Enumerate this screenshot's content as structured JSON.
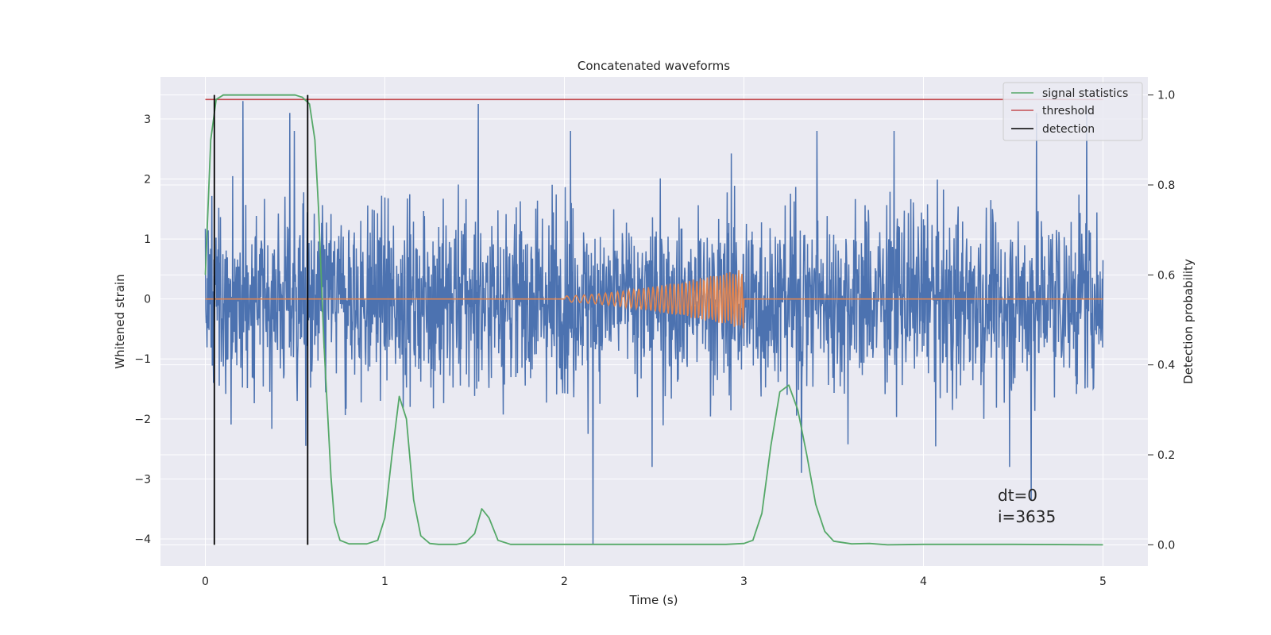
{
  "chart_data": {
    "type": "line",
    "title": "Concatenated waveforms",
    "xlabel": "Time (s)",
    "ylabel": "Whitened strain",
    "y2label": "Detection probability",
    "xlim": [
      -0.25,
      5.25
    ],
    "ylim": [
      -4.45,
      3.7
    ],
    "y2lim": [
      -0.047,
      1.04
    ],
    "xticks": [
      0,
      1,
      2,
      3,
      4,
      5
    ],
    "xtick_labels": [
      "0",
      "1",
      "2",
      "3",
      "4",
      "5"
    ],
    "yticks": [
      -4,
      -3,
      -2,
      -1,
      0,
      1,
      2,
      3
    ],
    "ytick_labels": [
      "−4",
      "−3",
      "−2",
      "−1",
      "0",
      "1",
      "2",
      "3"
    ],
    "y2ticks": [
      0.0,
      0.2,
      0.4,
      0.6,
      0.8,
      1.0
    ],
    "y2tick_labels": [
      "0.0",
      "0.2",
      "0.4",
      "0.6",
      "0.8",
      "1.0"
    ],
    "grid": true,
    "legend_position": "top-right",
    "annotation_lines": [
      "dt=0",
      "i=3635"
    ],
    "colors": {
      "background": "#eaeaf2",
      "grid": "#ffffff",
      "strain": "#4c72b0",
      "template": "#dd8452",
      "signal_statistics": "#55a868",
      "threshold": "#c44e52",
      "detection": "#000000"
    },
    "series": [
      {
        "name": "",
        "axis": "left",
        "kind": "whitened_strain_noise",
        "t_range": [
          0,
          5
        ],
        "typical_amplitude": 1.2,
        "peak_values": [
          {
            "t": 0.21,
            "v": 3.3
          },
          {
            "t": 0.47,
            "v": 3.1
          },
          {
            "t": 1.52,
            "v": 3.25
          },
          {
            "t": 4.63,
            "v": 3.1
          },
          {
            "t": 4.91,
            "v": 3.2
          },
          {
            "t": 2.16,
            "v": -4.1
          },
          {
            "t": 4.6,
            "v": -3.35
          },
          {
            "t": 0.56,
            "v": -2.45
          },
          {
            "t": 3.32,
            "v": -2.9
          }
        ]
      },
      {
        "name": "",
        "axis": "left",
        "kind": "chirp_template",
        "t_start": 2.0,
        "t_end": 3.0,
        "amplitude_start": 0.05,
        "amplitude_end": 0.5
      },
      {
        "name": "signal statistics",
        "axis": "right",
        "x": [
          0,
          0.03,
          0.06,
          0.1,
          0.2,
          0.3,
          0.4,
          0.5,
          0.54,
          0.58,
          0.61,
          0.63,
          0.66,
          0.7,
          0.72,
          0.75,
          0.8,
          0.9,
          0.96,
          1.0,
          1.04,
          1.08,
          1.12,
          1.16,
          1.2,
          1.25,
          1.3,
          1.4,
          1.45,
          1.5,
          1.54,
          1.58,
          1.63,
          1.7,
          2.0,
          2.5,
          2.9,
          3.0,
          3.05,
          3.1,
          3.15,
          3.2,
          3.25,
          3.3,
          3.35,
          3.4,
          3.45,
          3.5,
          3.6,
          3.7,
          3.8,
          4.0,
          4.5,
          5.0
        ],
        "y": [
          0.6,
          0.9,
          0.99,
          1.0,
          1.0,
          1.0,
          1.0,
          1.0,
          0.995,
          0.98,
          0.9,
          0.75,
          0.45,
          0.15,
          0.05,
          0.01,
          0.002,
          0.002,
          0.01,
          0.06,
          0.2,
          0.33,
          0.28,
          0.1,
          0.02,
          0.003,
          0.001,
          0.001,
          0.005,
          0.025,
          0.08,
          0.06,
          0.01,
          0.001,
          0.001,
          0.001,
          0.001,
          0.003,
          0.01,
          0.07,
          0.22,
          0.34,
          0.355,
          0.3,
          0.2,
          0.09,
          0.03,
          0.008,
          0.002,
          0.003,
          0.0,
          0.001,
          0.001,
          0.0
        ]
      },
      {
        "name": "threshold",
        "axis": "right",
        "x": [
          0,
          5
        ],
        "y": [
          0.99,
          0.99
        ]
      },
      {
        "name": "detection",
        "axis": "right",
        "kind": "vertical_lines",
        "x": [
          0.05,
          0.57
        ],
        "y_range": [
          0.0,
          1.0
        ]
      }
    ]
  }
}
